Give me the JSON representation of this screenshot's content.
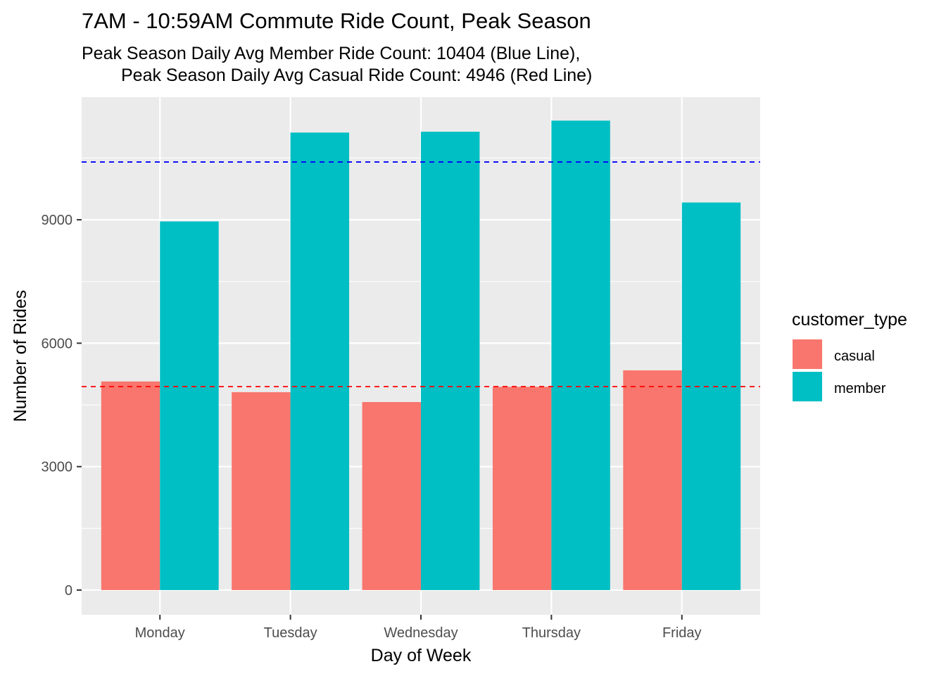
{
  "chart_data": {
    "type": "bar",
    "title": "7AM - 10:59AM Commute Ride Count, Peak Season",
    "subtitle_lines": [
      "Peak Season Daily Avg Member Ride Count: 10404 (Blue Line),",
      "Peak Season Daily Avg Casual Ride Count: 4946 (Red Line)"
    ],
    "xlabel": "Day of Week",
    "ylabel": "Number of Rides",
    "categories": [
      "Monday",
      "Tuesday",
      "Wednesday",
      "Thursday",
      "Friday"
    ],
    "series": [
      {
        "name": "casual",
        "color": "#F8766D",
        "values": [
          5070,
          4810,
          4570,
          4940,
          5340
        ]
      },
      {
        "name": "member",
        "color": "#00BFC4",
        "values": [
          8960,
          11120,
          11140,
          11410,
          9420
        ]
      }
    ],
    "reference_lines": [
      {
        "value": 10404,
        "color": "#0000FF",
        "style": "dashed"
      },
      {
        "value": 4946,
        "color": "#FF0000",
        "style": "dashed"
      }
    ],
    "y_ticks": [
      0,
      3000,
      6000,
      9000
    ],
    "ylim": [
      -600,
      11980
    ],
    "grid": true,
    "legend": {
      "title": "customer_type",
      "position": "right"
    },
    "panel_background": "#EBEBEB"
  }
}
